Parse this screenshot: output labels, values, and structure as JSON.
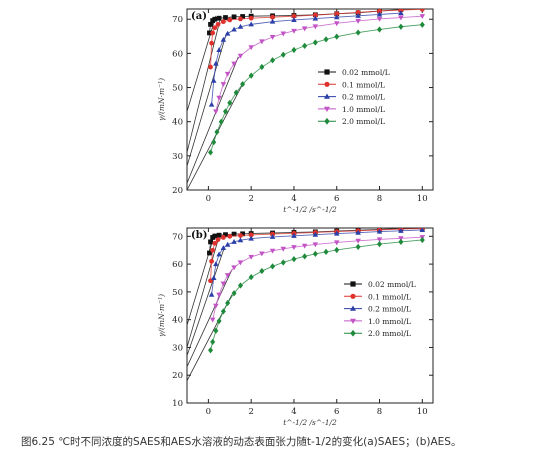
{
  "caption": "图6.25 ℃时不同浓度的SAES和AES水溶液的动态表面张力随t-1/2的变化(a)SAES；(b)AES。",
  "marker_colors": {
    "0.02 mmol/L": "#111111",
    "0.1 mmol/L": "#e0322d",
    "0.2 mmol/L": "#2b3fa8",
    "1.0 mmol/L": "#c254c6",
    "2.0 mmol/L": "#1f8a3c"
  },
  "chart_data": [
    {
      "type": "scatter",
      "panel_label": "(a)",
      "xlabel": "t^-1/2 /s^-1/2",
      "ylabel": "γ/(mN·m⁻¹)",
      "xlim": [
        -1,
        10.5
      ],
      "ylim": [
        20,
        73
      ],
      "xticks": [
        0,
        2,
        4,
        6,
        8,
        10
      ],
      "yticks": [
        20,
        30,
        40,
        50,
        60,
        70
      ],
      "legend_position": "right",
      "series": [
        {
          "name": "0.02 mmol/L",
          "marker": "square",
          "points": [
            [
              0.05,
              66
            ],
            [
              0.1,
              68.5
            ],
            [
              0.2,
              69.6
            ],
            [
              0.3,
              70.0
            ],
            [
              0.5,
              70.3
            ],
            [
              0.8,
              70.5
            ],
            [
              1.2,
              70.7
            ],
            [
              1.6,
              70.8
            ],
            [
              2,
              70.9
            ],
            [
              3,
              71.0
            ],
            [
              4,
              71.1
            ],
            [
              5,
              71.3
            ],
            [
              6,
              71.6
            ],
            [
              7,
              71.9
            ],
            [
              8,
              72.4
            ],
            [
              9,
              72.8
            ]
          ]
        },
        {
          "name": "0.1 mmol/L",
          "marker": "circle",
          "points": [
            [
              0.1,
              56
            ],
            [
              0.15,
              63
            ],
            [
              0.2,
              66
            ],
            [
              0.3,
              67.5
            ],
            [
              0.45,
              68.5
            ],
            [
              0.7,
              69.3
            ],
            [
              1.0,
              69.8
            ],
            [
              1.5,
              70.1
            ],
            [
              2,
              70.3
            ],
            [
              3,
              70.6
            ],
            [
              4,
              70.9
            ],
            [
              5,
              71.2
            ],
            [
              6,
              71.6
            ],
            [
              7,
              72.0
            ],
            [
              8,
              72.4
            ],
            [
              9,
              72.7
            ],
            [
              10,
              72.9
            ]
          ]
        },
        {
          "name": "0.2 mmol/L",
          "marker": "triangle-up",
          "points": [
            [
              0.15,
              45
            ],
            [
              0.25,
              52
            ],
            [
              0.35,
              57
            ],
            [
              0.5,
              61
            ],
            [
              0.7,
              64
            ],
            [
              0.9,
              65.8
            ],
            [
              1.2,
              67.0
            ],
            [
              1.5,
              67.8
            ],
            [
              2,
              68.5
            ],
            [
              3,
              69.3
            ],
            [
              4,
              69.8
            ],
            [
              5,
              70.2
            ],
            [
              6,
              70.6
            ],
            [
              7,
              71.0
            ],
            [
              8,
              71.4
            ],
            [
              9,
              71.8
            ]
          ]
        },
        {
          "name": "1.0 mmol/L",
          "marker": "triangle-down",
          "points": [
            [
              0.35,
              43
            ],
            [
              0.5,
              47
            ],
            [
              0.7,
              51
            ],
            [
              0.9,
              54
            ],
            [
              1.2,
              57
            ],
            [
              1.5,
              59.3
            ],
            [
              2,
              61.8
            ],
            [
              2.5,
              63.5
            ],
            [
              3,
              64.8
            ],
            [
              3.5,
              65.8
            ],
            [
              4,
              66.6
            ],
            [
              4.5,
              67.3
            ],
            [
              5,
              67.9
            ],
            [
              6,
              68.8
            ],
            [
              7,
              69.5
            ],
            [
              8,
              70.1
            ],
            [
              9,
              70.5
            ],
            [
              10,
              70.9
            ]
          ]
        },
        {
          "name": "2.0 mmol/L",
          "marker": "diamond",
          "points": [
            [
              0.1,
              31
            ],
            [
              0.25,
              34
            ],
            [
              0.4,
              37
            ],
            [
              0.6,
              40
            ],
            [
              0.8,
              43
            ],
            [
              1.0,
              45.5
            ],
            [
              1.3,
              48.5
            ],
            [
              1.6,
              51
            ],
            [
              2,
              53.5
            ],
            [
              2.5,
              56
            ],
            [
              3,
              58
            ],
            [
              3.5,
              59.6
            ],
            [
              4,
              61
            ],
            [
              4.5,
              62.2
            ],
            [
              5,
              63.2
            ],
            [
              5.5,
              64.1
            ],
            [
              6,
              64.9
            ],
            [
              7,
              66.1
            ],
            [
              8,
              67
            ],
            [
              9,
              67.8
            ],
            [
              10,
              68.4
            ]
          ]
        }
      ],
      "fit_lines": [
        {
          "series": "0.02 mmol/L",
          "from": [
            -1.0,
            43.0
          ],
          "to": [
            0.35,
            71.0
          ]
        },
        {
          "series": "0.1 mmol/L",
          "from": [
            -1.0,
            31.0
          ],
          "to": [
            0.55,
            70.0
          ]
        },
        {
          "series": "0.2 mmol/L",
          "from": [
            -1.0,
            27.0
          ],
          "to": [
            0.85,
            66.0
          ]
        },
        {
          "series": "1.0 mmol/L",
          "from": [
            -1.0,
            22.0
          ],
          "to": [
            1.4,
            59.0
          ]
        },
        {
          "series": "2.0 mmol/L",
          "from": [
            -1.0,
            20.0
          ],
          "to": [
            1.6,
            51.0
          ]
        }
      ]
    },
    {
      "type": "scatter",
      "panel_label": "(b)",
      "xlabel": "t^-1/2 /s^-1/2",
      "ylabel": "γ/(mN·m⁻¹)",
      "xlim": [
        -1,
        10.5
      ],
      "ylim": [
        10,
        73
      ],
      "xticks": [
        0,
        2,
        4,
        6,
        8,
        10
      ],
      "yticks": [
        10,
        20,
        30,
        40,
        50,
        60,
        70
      ],
      "legend_position": "right",
      "series": [
        {
          "name": "0.02 mmol/L",
          "marker": "square",
          "points": [
            [
              0.05,
              64
            ],
            [
              0.1,
              68
            ],
            [
              0.2,
              69.6
            ],
            [
              0.3,
              70.1
            ],
            [
              0.5,
              70.4
            ],
            [
              0.8,
              70.6
            ],
            [
              1.2,
              70.8
            ],
            [
              1.6,
              70.9
            ],
            [
              2,
              71.0
            ],
            [
              3,
              71.2
            ],
            [
              4,
              71.4
            ],
            [
              5,
              71.6
            ],
            [
              6,
              71.9
            ],
            [
              7,
              72.2
            ],
            [
              8,
              72.5
            ],
            [
              9,
              72.8
            ],
            [
              10,
              73.0
            ]
          ]
        },
        {
          "name": "0.1 mmol/L",
          "marker": "circle",
          "points": [
            [
              0.1,
              54
            ],
            [
              0.15,
              61
            ],
            [
              0.2,
              65
            ],
            [
              0.3,
              67.5
            ],
            [
              0.45,
              68.8
            ],
            [
              0.7,
              69.6
            ],
            [
              1.0,
              70.0
            ],
            [
              1.5,
              70.3
            ],
            [
              2,
              70.5
            ],
            [
              3,
              70.8
            ],
            [
              4,
              71.1
            ],
            [
              5,
              71.4
            ],
            [
              6,
              71.7
            ],
            [
              7,
              72.0
            ],
            [
              8,
              72.3
            ],
            [
              9,
              72.6
            ],
            [
              10,
              72.8
            ]
          ]
        },
        {
          "name": "0.2 mmol/L",
          "marker": "triangle-up",
          "points": [
            [
              0.15,
              49
            ],
            [
              0.25,
              55
            ],
            [
              0.35,
              60
            ],
            [
              0.5,
              63.5
            ],
            [
              0.7,
              65.8
            ],
            [
              0.9,
              67
            ],
            [
              1.2,
              68
            ],
            [
              1.5,
              68.6
            ],
            [
              2,
              69.2
            ],
            [
              3,
              69.8
            ],
            [
              4,
              70.2
            ],
            [
              5,
              70.6
            ],
            [
              6,
              71.0
            ],
            [
              7,
              71.3
            ],
            [
              8,
              71.7
            ],
            [
              9,
              72.0
            ],
            [
              10,
              72.3
            ]
          ]
        },
        {
          "name": "1.0 mmol/L",
          "marker": "triangle-down",
          "points": [
            [
              0.2,
              40
            ],
            [
              0.35,
              45
            ],
            [
              0.5,
              49
            ],
            [
              0.7,
              53
            ],
            [
              0.9,
              56
            ],
            [
              1.2,
              58.8
            ],
            [
              1.5,
              60.6
            ],
            [
              2,
              62.6
            ],
            [
              2.5,
              63.8
            ],
            [
              3,
              64.8
            ],
            [
              3.5,
              65.5
            ],
            [
              4,
              66.1
            ],
            [
              4.5,
              66.6
            ],
            [
              5,
              67.1
            ],
            [
              6,
              67.8
            ],
            [
              7,
              68.4
            ],
            [
              8,
              68.9
            ],
            [
              9,
              69.3
            ],
            [
              10,
              69.7
            ]
          ]
        },
        {
          "name": "2.0 mmol/L",
          "marker": "diamond",
          "points": [
            [
              0.1,
              29
            ],
            [
              0.2,
              32
            ],
            [
              0.35,
              36
            ],
            [
              0.5,
              39.5
            ],
            [
              0.7,
              43
            ],
            [
              0.9,
              46
            ],
            [
              1.2,
              49.5
            ],
            [
              1.5,
              52.3
            ],
            [
              2,
              55.3
            ],
            [
              2.5,
              57.5
            ],
            [
              3,
              59.2
            ],
            [
              3.5,
              60.6
            ],
            [
              4,
              61.8
            ],
            [
              4.5,
              62.8
            ],
            [
              5,
              63.7
            ],
            [
              5.5,
              64.4
            ],
            [
              6,
              65.1
            ],
            [
              7,
              66.2
            ],
            [
              8,
              67.2
            ],
            [
              9,
              68.0
            ],
            [
              10,
              68.7
            ]
          ]
        }
      ],
      "fit_lines": [
        {
          "series": "0.02 mmol/L",
          "from": [
            -1.0,
            38.0
          ],
          "to": [
            0.3,
            71.0
          ]
        },
        {
          "series": "0.1 mmol/L",
          "from": [
            -1.0,
            30.0
          ],
          "to": [
            0.5,
            70.0
          ]
        },
        {
          "series": "0.2 mmol/L",
          "from": [
            -1.0,
            27.0
          ],
          "to": [
            0.75,
            66.0
          ]
        },
        {
          "series": "1.0 mmol/L",
          "from": [
            -1.0,
            23.0
          ],
          "to": [
            1.1,
            58.0
          ]
        },
        {
          "series": "2.0 mmol/L",
          "from": [
            -1.0,
            18.0
          ],
          "to": [
            1.1,
            49.0
          ]
        }
      ]
    }
  ]
}
